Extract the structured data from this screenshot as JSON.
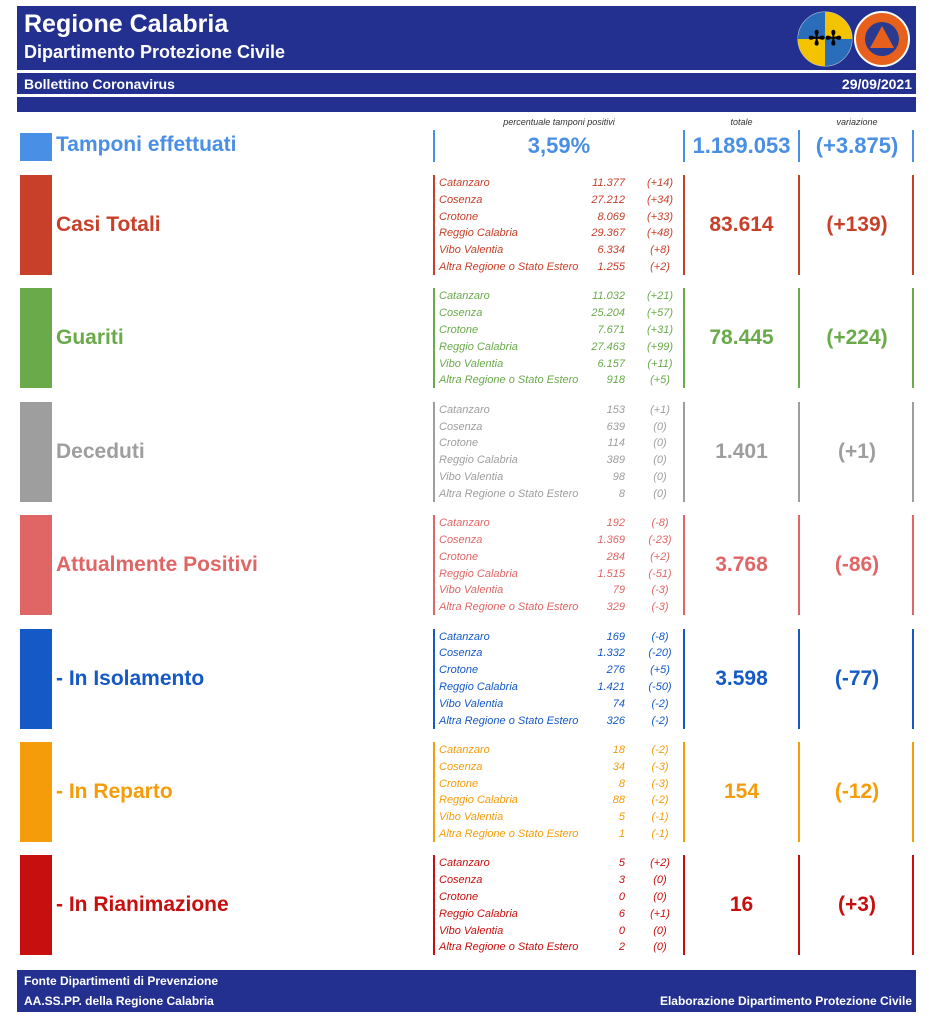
{
  "header": {
    "title": "Regione Calabria",
    "subtitle": "Dipartimento Protezione Civile",
    "bulletin": "Bollettino Coronavirus",
    "date": "29/09/2021"
  },
  "columns": {
    "percent": "percentuale tamponi positivi",
    "total": "totale",
    "change": "variazione"
  },
  "tamponi": {
    "label": "Tamponi effettuati",
    "color": "#4a8fe6",
    "percent": "3,59%",
    "total": "1.189.053",
    "change": "(+3.875)"
  },
  "sections": [
    {
      "label": "Casi Totali",
      "color": "#c8402a",
      "total": "83.614",
      "change": "(+139)",
      "rows": [
        [
          "Catanzaro",
          "11.377",
          "(+14)"
        ],
        [
          "Cosenza",
          "27.212",
          "(+34)"
        ],
        [
          "Crotone",
          "8.069",
          "(+33)"
        ],
        [
          "Reggio Calabria",
          "29.367",
          "(+48)"
        ],
        [
          "Vibo Valentia",
          "6.334",
          "(+8)"
        ],
        [
          "Altra Regione o Stato Estero",
          "1.255",
          "(+2)"
        ]
      ]
    },
    {
      "label": "Guariti",
      "color": "#6aaa4b",
      "total": "78.445",
      "change": "(+224)",
      "rows": [
        [
          "Catanzaro",
          "11.032",
          "(+21)"
        ],
        [
          "Cosenza",
          "25.204",
          "(+57)"
        ],
        [
          "Crotone",
          "7.671",
          "(+31)"
        ],
        [
          "Reggio Calabria",
          "27.463",
          "(+99)"
        ],
        [
          "Vibo Valentia",
          "6.157",
          "(+11)"
        ],
        [
          "Altra Regione o Stato Estero",
          "918",
          "(+5)"
        ]
      ]
    },
    {
      "label": "Deceduti",
      "color": "#9e9e9e",
      "total": "1.401",
      "change": "(+1)",
      "rows": [
        [
          "Catanzaro",
          "153",
          "(+1)"
        ],
        [
          "Cosenza",
          "639",
          "(0)"
        ],
        [
          "Crotone",
          "114",
          "(0)"
        ],
        [
          "Reggio Calabria",
          "389",
          "(0)"
        ],
        [
          "Vibo Valentia",
          "98",
          "(0)"
        ],
        [
          "Altra Regione o Stato Estero",
          "8",
          "(0)"
        ]
      ]
    },
    {
      "label": "Attualmente Positivi",
      "color": "#e06666",
      "total": "3.768",
      "change": "(-86)",
      "rows": [
        [
          "Catanzaro",
          "192",
          "(-8)"
        ],
        [
          "Cosenza",
          "1.369",
          "(-23)"
        ],
        [
          "Crotone",
          "284",
          "(+2)"
        ],
        [
          "Reggio Calabria",
          "1.515",
          "(-51)"
        ],
        [
          "Vibo Valentia",
          "79",
          "(-3)"
        ],
        [
          "Altra Regione o Stato Estero",
          "329",
          "(-3)"
        ]
      ]
    },
    {
      "label": "- In Isolamento",
      "color": "#1559c6",
      "total": "3.598",
      "change": "(-77)",
      "rows": [
        [
          "Catanzaro",
          "169",
          "(-8)"
        ],
        [
          "Cosenza",
          "1.332",
          "(-20)"
        ],
        [
          "Crotone",
          "276",
          "(+5)"
        ],
        [
          "Reggio Calabria",
          "1.421",
          "(-50)"
        ],
        [
          "Vibo Valentia",
          "74",
          "(-2)"
        ],
        [
          "Altra Regione o Stato Estero",
          "326",
          "(-2)"
        ]
      ]
    },
    {
      "label": "- In Reparto",
      "color": "#f49c0a",
      "total": "154",
      "change": "(-12)",
      "rows": [
        [
          "Catanzaro",
          "18",
          "(-2)"
        ],
        [
          "Cosenza",
          "34",
          "(-3)"
        ],
        [
          "Crotone",
          "8",
          "(-3)"
        ],
        [
          "Reggio Calabria",
          "88",
          "(-2)"
        ],
        [
          "Vibo Valentia",
          "5",
          "(-1)"
        ],
        [
          "Altra Regione o Stato Estero",
          "1",
          "(-1)"
        ]
      ]
    },
    {
      "label": "- In Rianimazione",
      "color": "#c80f0f",
      "total": "16",
      "change": "(+3)",
      "rows": [
        [
          "Catanzaro",
          "5",
          "(+2)"
        ],
        [
          "Cosenza",
          "3",
          "(0)"
        ],
        [
          "Crotone",
          "0",
          "(0)"
        ],
        [
          "Reggio Calabria",
          "6",
          "(+1)"
        ],
        [
          "Vibo Valentia",
          "0",
          "(0)"
        ],
        [
          "Altra Regione o Stato Estero",
          "2",
          "(0)"
        ]
      ]
    }
  ],
  "footer": {
    "source": "Fonte Dipartimenti di Prevenzione",
    "agency": "AA.SS.PP.  della Regione Calabria",
    "credit": "Elaborazione Dipartimento Protezione Civile"
  }
}
